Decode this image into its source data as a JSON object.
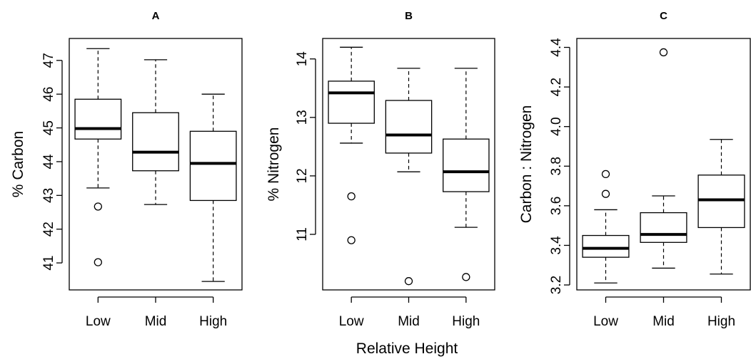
{
  "chart_data": [
    {
      "type": "boxplot",
      "title": "A",
      "ylabel": "% Carbon",
      "categories": [
        "Low",
        "Mid",
        "High"
      ],
      "yticks": [
        41,
        42,
        43,
        44,
        45,
        46,
        47
      ],
      "ylim": [
        40.2,
        47.65
      ],
      "boxes": [
        {
          "min": 43.22,
          "q1": 44.67,
          "median": 44.98,
          "q3": 45.85,
          "max": 47.35,
          "outliers": [
            42.67,
            41.02
          ]
        },
        {
          "min": 42.73,
          "q1": 43.73,
          "median": 44.28,
          "q3": 45.45,
          "max": 47.02,
          "outliers": []
        },
        {
          "min": 40.45,
          "q1": 42.85,
          "median": 43.95,
          "q3": 44.9,
          "max": 46.0,
          "outliers": []
        }
      ]
    },
    {
      "type": "boxplot",
      "title": "B",
      "ylabel": "% Nitrogen",
      "categories": [
        "Low",
        "Mid",
        "High"
      ],
      "yticks": [
        11,
        12,
        13,
        14
      ],
      "ylim": [
        10.05,
        14.35
      ],
      "boxes": [
        {
          "min": 12.56,
          "q1": 12.9,
          "median": 13.42,
          "q3": 13.62,
          "max": 14.2,
          "outliers": [
            11.65,
            10.9
          ]
        },
        {
          "min": 12.07,
          "q1": 12.39,
          "median": 12.7,
          "q3": 13.29,
          "max": 13.84,
          "outliers": [
            10.2
          ]
        },
        {
          "min": 11.12,
          "q1": 11.73,
          "median": 12.07,
          "q3": 12.63,
          "max": 13.84,
          "outliers": [
            10.27
          ]
        }
      ]
    },
    {
      "type": "boxplot",
      "title": "C",
      "ylabel": "Carbon : Nitrogen",
      "categories": [
        "Low",
        "Mid",
        "High"
      ],
      "yticks": [
        "3.2",
        "3.4",
        "3.6",
        "3.8",
        "4.0",
        "4.2",
        "4.4"
      ],
      "ylim": [
        3.175,
        4.445
      ],
      "boxes": [
        {
          "min": 3.21,
          "q1": 3.34,
          "median": 3.385,
          "q3": 3.45,
          "max": 3.58,
          "outliers": [
            3.66,
            3.76
          ]
        },
        {
          "min": 3.285,
          "q1": 3.415,
          "median": 3.455,
          "q3": 3.565,
          "max": 3.65,
          "outliers": [
            4.375
          ]
        },
        {
          "min": 3.255,
          "q1": 3.49,
          "median": 3.63,
          "q3": 3.755,
          "max": 3.935,
          "outliers": []
        }
      ]
    }
  ],
  "xlabel": "Relative Height"
}
